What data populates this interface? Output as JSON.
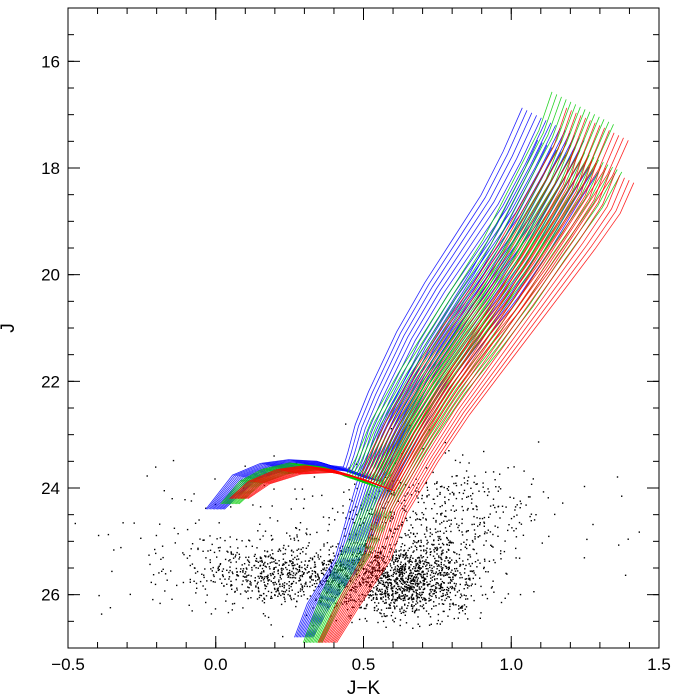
{
  "chart_data": {
    "type": "scatter",
    "title": "",
    "xlabel": "J−K",
    "ylabel": "J",
    "xlim": [
      -0.5,
      1.5
    ],
    "ylim": [
      27.0,
      15.0
    ],
    "y_inverted": true,
    "grid": false,
    "x_ticks": [
      -0.5,
      0.0,
      0.5,
      1.0,
      1.5
    ],
    "x_tick_labels": [
      "−0.5",
      "0.0",
      "0.5",
      "1.0",
      "1.5"
    ],
    "y_ticks": [
      16,
      18,
      20,
      22,
      24,
      26
    ],
    "y_tick_labels": [
      "16",
      "18",
      "20",
      "22",
      "24",
      "26"
    ],
    "point_cloud": {
      "color": "#000000",
      "description_clusters": [
        {
          "center": [
            0.65,
            25.7
          ],
          "spread": [
            0.12,
            0.6
          ],
          "weight": 0.45
        },
        {
          "center": [
            0.25,
            25.6
          ],
          "spread": [
            0.18,
            0.5
          ],
          "weight": 0.3
        },
        {
          "center": [
            0.75,
            24.5
          ],
          "spread": [
            0.15,
            0.9
          ],
          "weight": 0.15
        },
        {
          "center": [
            0.4,
            25.0
          ],
          "spread": [
            0.4,
            1.2
          ],
          "weight": 0.1
        }
      ]
    },
    "series": [
      {
        "color": "#0000ff",
        "tracks": [
          {
            "x": [
              0.0,
              0.05,
              0.1,
              0.2,
              0.3,
              0.4,
              0.45,
              0.5,
              0.52,
              0.55,
              0.6,
              0.7,
              0.8,
              0.9,
              1.0,
              1.08,
              1.15
            ],
            "y": [
              24.4,
              24.1,
              23.8,
              23.6,
              23.55,
              23.6,
              23.7,
              23.75,
              23.5,
              23.0,
              22.4,
              21.3,
              20.4,
              19.6,
              18.8,
              18.0,
              17.2
            ]
          },
          {
            "x": [
              0.3,
              0.35,
              0.45,
              0.5,
              0.55,
              0.65,
              0.75,
              0.85,
              0.95,
              1.05,
              1.15,
              1.2
            ],
            "y": [
              26.8,
              26.2,
              25.4,
              24.6,
              23.8,
              22.7,
              21.8,
              21.0,
              20.2,
              19.3,
              18.3,
              17.8
            ]
          }
        ]
      },
      {
        "color": "#00cc00",
        "tracks": [
          {
            "x": [
              0.05,
              0.12,
              0.2,
              0.3,
              0.42,
              0.5,
              0.54,
              0.6,
              0.7,
              0.8,
              0.9,
              1.0,
              1.1,
              1.2,
              1.25
            ],
            "y": [
              24.3,
              23.9,
              23.7,
              23.6,
              23.7,
              23.9,
              23.6,
              22.9,
              22.0,
              21.2,
              20.4,
              19.6,
              18.6,
              17.6,
              16.9
            ]
          },
          {
            "x": [
              0.33,
              0.4,
              0.5,
              0.58,
              0.68,
              0.78,
              0.9,
              1.0,
              1.1,
              1.22,
              1.28
            ],
            "y": [
              26.9,
              26.0,
              25.0,
              24.0,
              23.0,
              22.1,
              21.2,
              20.4,
              19.5,
              18.5,
              17.8
            ]
          }
        ]
      },
      {
        "color": "#ff0000",
        "tracks": [
          {
            "x": [
              0.08,
              0.15,
              0.25,
              0.35,
              0.45,
              0.55,
              0.58,
              0.65,
              0.75,
              0.85,
              0.95,
              1.05,
              1.15,
              1.25,
              1.3
            ],
            "y": [
              24.2,
              23.9,
              23.7,
              23.65,
              23.75,
              23.95,
              23.6,
              22.9,
              22.0,
              21.2,
              20.5,
              19.7,
              18.8,
              17.9,
              17.2
            ]
          },
          {
            "x": [
              0.38,
              0.45,
              0.55,
              0.6,
              0.7,
              0.8,
              0.9,
              1.0,
              1.1,
              1.2,
              1.28,
              1.32
            ],
            "y": [
              26.9,
              26.2,
              25.3,
              24.4,
              23.4,
              22.5,
              21.7,
              20.9,
              20.1,
              19.3,
              18.6,
              18.0
            ]
          }
        ]
      }
    ]
  }
}
